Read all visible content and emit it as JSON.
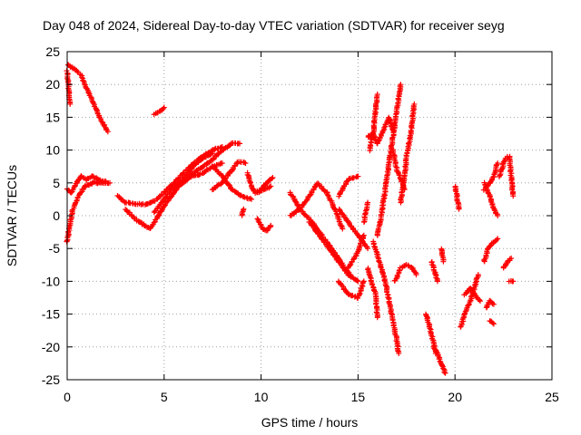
{
  "chart_data": {
    "type": "scatter",
    "title": "Day 048 of 2024, Sidereal Day-to-day VTEC variation (SDTVAR) for receiver seyg",
    "xlabel": "GPS time / hours",
    "ylabel": "SDTVAR / TECUs",
    "xlim": [
      0,
      25
    ],
    "ylim": [
      -25,
      25
    ],
    "xticks": [
      0,
      5,
      10,
      15,
      20,
      25
    ],
    "yticks": [
      -25,
      -20,
      -15,
      -10,
      -5,
      0,
      5,
      10,
      15,
      20,
      25
    ],
    "xtick_labels": [
      "0",
      "5",
      "10",
      "15",
      "20",
      "25"
    ],
    "ytick_labels": [
      "-25",
      "-20",
      "-15",
      "-10",
      "-5",
      "0",
      "5",
      "10",
      "15",
      "20",
      "25"
    ],
    "grid": true,
    "marker": "+",
    "color": "#ff0000",
    "tracks": [
      [
        [
          0.05,
          23
        ],
        [
          0.3,
          22.5
        ],
        [
          0.7,
          21.5
        ],
        [
          1.0,
          19.5
        ],
        [
          1.3,
          17.5
        ],
        [
          1.6,
          15.5
        ],
        [
          1.9,
          13.8
        ],
        [
          2.1,
          12.8
        ]
      ],
      [
        [
          0.0,
          22
        ],
        [
          0.1,
          19
        ],
        [
          0.15,
          17
        ]
      ],
      [
        [
          4.5,
          15.5
        ],
        [
          4.8,
          16
        ],
        [
          5.0,
          16.5
        ]
      ],
      [
        [
          0.0,
          4
        ],
        [
          0.2,
          3.5
        ],
        [
          0.5,
          5
        ],
        [
          0.7,
          6
        ],
        [
          1.0,
          5.5
        ],
        [
          1.3,
          6
        ],
        [
          1.6,
          5.5
        ],
        [
          2.0,
          5.2
        ]
      ],
      [
        [
          0.0,
          -4
        ],
        [
          0.1,
          -2
        ],
        [
          0.3,
          1
        ],
        [
          0.6,
          3
        ],
        [
          0.9,
          4.5
        ],
        [
          1.2,
          4.8
        ],
        [
          1.5,
          5.2
        ]
      ],
      [
        [
          1.5,
          5
        ],
        [
          1.8,
          5
        ],
        [
          2.2,
          5
        ]
      ],
      [
        [
          2.6,
          3
        ],
        [
          3.0,
          2
        ],
        [
          3.5,
          1.8
        ],
        [
          4.0,
          1.7
        ],
        [
          4.5,
          2.2
        ],
        [
          5.0,
          3.5
        ],
        [
          5.5,
          5
        ],
        [
          6.0,
          6.5
        ],
        [
          6.5,
          8
        ],
        [
          7.0,
          9
        ],
        [
          7.5,
          10
        ],
        [
          8.0,
          10.5
        ]
      ],
      [
        [
          3.0,
          1
        ],
        [
          3.5,
          -0.5
        ],
        [
          4.0,
          -1.5
        ],
        [
          4.3,
          -2
        ],
        [
          4.6,
          -0.5
        ],
        [
          5.0,
          1.5
        ],
        [
          5.5,
          3.5
        ],
        [
          6.0,
          5.5
        ],
        [
          6.5,
          7.5
        ],
        [
          7.0,
          8.8
        ],
        [
          7.5,
          9.5
        ]
      ],
      [
        [
          4.5,
          0.5
        ],
        [
          5.0,
          2.5
        ],
        [
          5.5,
          4.5
        ],
        [
          6.0,
          5.5
        ],
        [
          6.5,
          6
        ],
        [
          7.0,
          6.5
        ],
        [
          7.5,
          7.5
        ],
        [
          8.0,
          8
        ]
      ],
      [
        [
          5.5,
          4
        ],
        [
          6.0,
          5
        ],
        [
          6.5,
          6.5
        ],
        [
          7.0,
          7.5
        ],
        [
          7.5,
          8.5
        ],
        [
          8.0,
          10
        ],
        [
          8.5,
          11
        ],
        [
          8.9,
          11
        ]
      ],
      [
        [
          7.5,
          7.5
        ],
        [
          8.0,
          6
        ],
        [
          8.5,
          4
        ],
        [
          9.0,
          3
        ],
        [
          9.5,
          2.5
        ]
      ],
      [
        [
          7.5,
          4
        ],
        [
          8.0,
          5
        ],
        [
          8.5,
          7
        ],
        [
          8.8,
          8.2
        ],
        [
          9.2,
          8
        ]
      ],
      [
        [
          9.3,
          6.5
        ],
        [
          9.5,
          4.5
        ],
        [
          9.7,
          3.5
        ],
        [
          10.0,
          4
        ],
        [
          10.3,
          5
        ],
        [
          10.6,
          5.8
        ]
      ],
      [
        [
          9.8,
          -0.5
        ],
        [
          10.1,
          -2
        ],
        [
          10.3,
          -2.3
        ],
        [
          10.5,
          -1.5
        ]
      ],
      [
        [
          9.8,
          3.5
        ],
        [
          10.2,
          4
        ],
        [
          10.5,
          4.5
        ]
      ],
      [
        [
          9.0,
          0
        ],
        [
          9.1,
          1
        ]
      ],
      [
        [
          11.5,
          3.5
        ],
        [
          12.0,
          1
        ],
        [
          12.5,
          -0.5
        ],
        [
          13.0,
          -2.5
        ],
        [
          13.5,
          -4.5
        ],
        [
          14.0,
          -6.5
        ],
        [
          14.3,
          -8
        ],
        [
          14.6,
          -9
        ]
      ],
      [
        [
          11.5,
          0
        ],
        [
          12.0,
          1
        ],
        [
          12.5,
          3
        ],
        [
          12.9,
          5
        ],
        [
          13.4,
          3.5
        ],
        [
          13.8,
          1
        ],
        [
          14.2,
          -2
        ]
      ],
      [
        [
          12.5,
          -1
        ],
        [
          13.0,
          -3
        ],
        [
          13.5,
          -5
        ],
        [
          14.0,
          -7
        ],
        [
          14.5,
          -9
        ],
        [
          15.0,
          -10
        ]
      ],
      [
        [
          14.0,
          3
        ],
        [
          14.5,
          5.5
        ],
        [
          15.0,
          6
        ]
      ],
      [
        [
          14.5,
          -8
        ],
        [
          15.0,
          -5.5
        ],
        [
          15.3,
          -3
        ]
      ],
      [
        [
          14.0,
          1
        ],
        [
          14.5,
          -1
        ],
        [
          15.0,
          -3
        ],
        [
          15.5,
          -5
        ]
      ],
      [
        [
          14.0,
          -10
        ],
        [
          14.5,
          -12
        ],
        [
          15.0,
          -12.5
        ],
        [
          15.3,
          -10
        ]
      ],
      [
        [
          15.3,
          -1
        ],
        [
          15.5,
          2
        ]
      ],
      [
        [
          15.5,
          12
        ],
        [
          15.8,
          12.5
        ],
        [
          16.0,
          11
        ]
      ],
      [
        [
          15.6,
          10
        ],
        [
          15.8,
          13
        ],
        [
          15.9,
          16
        ],
        [
          16.0,
          18.5
        ]
      ],
      [
        [
          15.5,
          -8
        ],
        [
          15.7,
          -10
        ],
        [
          15.9,
          -12
        ],
        [
          16.0,
          -15.5
        ]
      ],
      [
        [
          15.8,
          -4
        ],
        [
          16.1,
          -7
        ],
        [
          16.4,
          -10
        ],
        [
          16.6,
          -13
        ],
        [
          16.8,
          -16
        ],
        [
          17.0,
          -19
        ],
        [
          17.1,
          -21
        ]
      ],
      [
        [
          16.0,
          -3
        ],
        [
          16.2,
          0
        ],
        [
          16.4,
          4
        ],
        [
          16.6,
          8
        ],
        [
          16.8,
          12
        ],
        [
          17.0,
          16
        ],
        [
          17.2,
          20
        ]
      ],
      [
        [
          16.0,
          11
        ],
        [
          16.3,
          13
        ],
        [
          16.6,
          15
        ],
        [
          16.8,
          13
        ]
      ],
      [
        [
          16.8,
          10
        ],
        [
          17.0,
          7
        ],
        [
          17.2,
          5.5
        ],
        [
          17.4,
          4
        ]
      ],
      [
        [
          17.2,
          2
        ],
        [
          17.4,
          6
        ],
        [
          17.5,
          9
        ],
        [
          17.7,
          12
        ],
        [
          17.9,
          17
        ]
      ],
      [
        [
          16.9,
          -10
        ],
        [
          17.2,
          -8
        ],
        [
          17.5,
          -7.5
        ],
        [
          17.8,
          -8
        ],
        [
          18.0,
          -9
        ]
      ],
      [
        [
          18.5,
          -15
        ],
        [
          18.7,
          -17
        ],
        [
          18.9,
          -19.5
        ],
        [
          19.0,
          -21
        ]
      ],
      [
        [
          18.9,
          -20
        ],
        [
          19.1,
          -21
        ],
        [
          19.3,
          -22.5
        ],
        [
          19.5,
          -24
        ]
      ],
      [
        [
          18.8,
          -7
        ],
        [
          19.0,
          -9
        ],
        [
          19.1,
          -10
        ]
      ],
      [
        [
          19.3,
          -5
        ],
        [
          19.4,
          -7
        ]
      ],
      [
        [
          20.0,
          4.5
        ],
        [
          20.1,
          3
        ],
        [
          20.2,
          1
        ]
      ],
      [
        [
          20.3,
          -17
        ],
        [
          20.5,
          -15
        ],
        [
          20.8,
          -13
        ],
        [
          21.0,
          -11
        ],
        [
          21.2,
          -9
        ]
      ],
      [
        [
          20.5,
          -12
        ],
        [
          20.8,
          -11
        ],
        [
          21.0,
          -12
        ],
        [
          21.3,
          -13
        ]
      ],
      [
        [
          21.5,
          -7
        ],
        [
          21.7,
          -5
        ],
        [
          22.0,
          -4
        ],
        [
          22.2,
          -3.5
        ]
      ],
      [
        [
          21.6,
          -14
        ],
        [
          21.8,
          -13
        ],
        [
          22.0,
          -13.5
        ]
      ],
      [
        [
          21.5,
          4
        ],
        [
          21.8,
          5
        ],
        [
          22.0,
          6
        ],
        [
          22.2,
          8
        ]
      ],
      [
        [
          21.5,
          5
        ],
        [
          21.8,
          3
        ],
        [
          22.0,
          1
        ],
        [
          22.2,
          0
        ]
      ],
      [
        [
          22.3,
          6
        ],
        [
          22.5,
          8
        ],
        [
          22.7,
          9
        ]
      ],
      [
        [
          22.5,
          -8
        ],
        [
          22.7,
          -7
        ],
        [
          22.9,
          -6.5
        ]
      ],
      [
        [
          22.8,
          9
        ],
        [
          22.9,
          6
        ],
        [
          23.0,
          3
        ]
      ],
      [
        [
          22.8,
          -10
        ],
        [
          23.0,
          -10
        ]
      ],
      [
        [
          21.8,
          -16
        ],
        [
          22.0,
          -16.5
        ]
      ]
    ]
  }
}
